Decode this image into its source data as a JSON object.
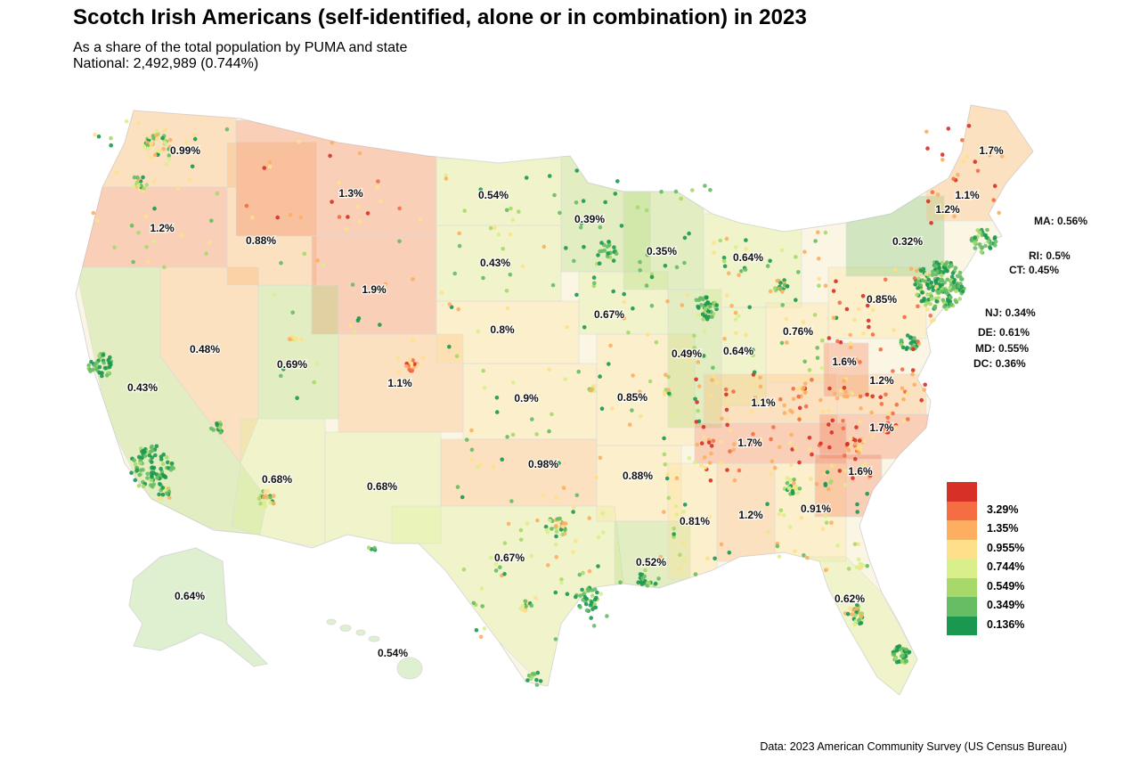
{
  "title": "Scotch Irish Americans (self-identified, alone or in combination) in 2023",
  "subtitle_line1": "As a share of the total population by PUMA and state",
  "subtitle_line2": "National: 2,492,989 (0.744%)",
  "source": "Data: 2023 American Community Survey (US Census Bureau)",
  "colors": {
    "c1": "#d73027",
    "c2": "#f46d43",
    "c3": "#fdae61",
    "c4": "#fee08b",
    "c5": "#d9ef8b",
    "c6": "#a6d96a",
    "c7": "#66bd63",
    "c8": "#1a9850"
  },
  "legend": {
    "labels": [
      "3.29%",
      "1.35%",
      "0.955%",
      "0.744%",
      "0.549%",
      "0.349%",
      "0.136%"
    ],
    "colors": [
      "#d73027",
      "#f46d43",
      "#fdae61",
      "#fee08b",
      "#d9ef8b",
      "#a6d96a",
      "#66bd63",
      "#1a9850"
    ]
  },
  "states": [
    {
      "id": "WA",
      "value": 0.99,
      "label": "0.99%",
      "fill": "c3"
    },
    {
      "id": "OR",
      "value": 1.2,
      "label": "1.2%",
      "fill": "c2"
    },
    {
      "id": "CA",
      "value": 0.43,
      "label": "0.43%",
      "fill": "c6"
    },
    {
      "id": "NV",
      "value": 0.48,
      "label": "0.48%",
      "fill": "c3"
    },
    {
      "id": "ID",
      "value": 0.88,
      "label": "0.88%",
      "fill": "c3"
    },
    {
      "id": "MT",
      "value": 1.3,
      "label": "1.3%",
      "fill": "c2"
    },
    {
      "id": "WY",
      "value": 1.9,
      "label": "1.9%",
      "fill": "c2"
    },
    {
      "id": "UT",
      "value": 0.69,
      "label": "0.69%",
      "fill": "c6"
    },
    {
      "id": "AZ",
      "value": 0.68,
      "label": "0.68%",
      "fill": "c5"
    },
    {
      "id": "CO",
      "value": 1.1,
      "label": "1.1%",
      "fill": "c3"
    },
    {
      "id": "NM",
      "value": 0.68,
      "label": "0.68%",
      "fill": "c5"
    },
    {
      "id": "ND",
      "value": 0.54,
      "label": "0.54%",
      "fill": "c5"
    },
    {
      "id": "SD",
      "value": 0.43,
      "label": "0.43%",
      "fill": "c5"
    },
    {
      "id": "NE",
      "value": 0.8,
      "label": "0.8%",
      "fill": "c4"
    },
    {
      "id": "KS",
      "value": 0.9,
      "label": "0.9%",
      "fill": "c4"
    },
    {
      "id": "OK",
      "value": 0.98,
      "label": "0.98%",
      "fill": "c3"
    },
    {
      "id": "TX",
      "value": 0.67,
      "label": "0.67%",
      "fill": "c5"
    },
    {
      "id": "MN",
      "value": 0.39,
      "label": "0.39%",
      "fill": "c6"
    },
    {
      "id": "IA",
      "value": 0.67,
      "label": "0.67%",
      "fill": "c5"
    },
    {
      "id": "MO",
      "value": 0.85,
      "label": "0.85%",
      "fill": "c4"
    },
    {
      "id": "AR",
      "value": 0.88,
      "label": "0.88%",
      "fill": "c4"
    },
    {
      "id": "LA",
      "value": 0.52,
      "label": "0.52%",
      "fill": "c6"
    },
    {
      "id": "WI",
      "value": 0.35,
      "label": "0.35%",
      "fill": "c6"
    },
    {
      "id": "IL",
      "value": 0.49,
      "label": "0.49%",
      "fill": "c6"
    },
    {
      "id": "MS",
      "value": 0.81,
      "label": "0.81%",
      "fill": "c4"
    },
    {
      "id": "MI",
      "value": 0.64,
      "label": "0.64%",
      "fill": "c5"
    },
    {
      "id": "IN",
      "value": 0.64,
      "label": "0.64%",
      "fill": "c5"
    },
    {
      "id": "KY",
      "value": 1.1,
      "label": "1.1%",
      "fill": "c3"
    },
    {
      "id": "TN",
      "value": 1.7,
      "label": "1.7%",
      "fill": "c2"
    },
    {
      "id": "AL",
      "value": 1.2,
      "label": "1.2%",
      "fill": "c3"
    },
    {
      "id": "GA",
      "value": 0.91,
      "label": "0.91%",
      "fill": "c4"
    },
    {
      "id": "FL",
      "value": 0.62,
      "label": "0.62%",
      "fill": "c5"
    },
    {
      "id": "OH",
      "value": 0.76,
      "label": "0.76%",
      "fill": "c4"
    },
    {
      "id": "WV",
      "value": 1.6,
      "label": "1.6%",
      "fill": "c2"
    },
    {
      "id": "VA",
      "value": 1.2,
      "label": "1.2%",
      "fill": "c3"
    },
    {
      "id": "NC",
      "value": 1.7,
      "label": "1.7%",
      "fill": "c2"
    },
    {
      "id": "SC",
      "value": 1.6,
      "label": "1.6%",
      "fill": "c2"
    },
    {
      "id": "PA",
      "value": 0.85,
      "label": "0.85%",
      "fill": "c4"
    },
    {
      "id": "NY",
      "value": 0.32,
      "label": "0.32%",
      "fill": "c7"
    },
    {
      "id": "VT",
      "value": 1.2,
      "label": "1.2%",
      "fill": "c3"
    },
    {
      "id": "NH",
      "value": 1.1,
      "label": "1.1%",
      "fill": "c3"
    },
    {
      "id": "ME",
      "value": 1.7,
      "label": "1.7%",
      "fill": "c2"
    },
    {
      "id": "MA",
      "value": 0.56,
      "label": "MA: 0.56%",
      "fill": "c5"
    },
    {
      "id": "RI",
      "value": 0.5,
      "label": "RI: 0.5%",
      "fill": "c6"
    },
    {
      "id": "CT",
      "value": 0.45,
      "label": "CT: 0.45%",
      "fill": "c6"
    },
    {
      "id": "NJ",
      "value": 0.34,
      "label": "NJ: 0.34%",
      "fill": "c7"
    },
    {
      "id": "DE",
      "value": 0.61,
      "label": "DE: 0.61%",
      "fill": "c5"
    },
    {
      "id": "MD",
      "value": 0.55,
      "label": "MD: 0.55%",
      "fill": "c5"
    },
    {
      "id": "DC",
      "value": 0.36,
      "label": "DC: 0.36%",
      "fill": "c6"
    },
    {
      "id": "AK",
      "value": 0.64,
      "label": "0.64%",
      "fill": "c5"
    },
    {
      "id": "HI",
      "value": 0.54,
      "label": "0.54%",
      "fill": "c6"
    }
  ]
}
